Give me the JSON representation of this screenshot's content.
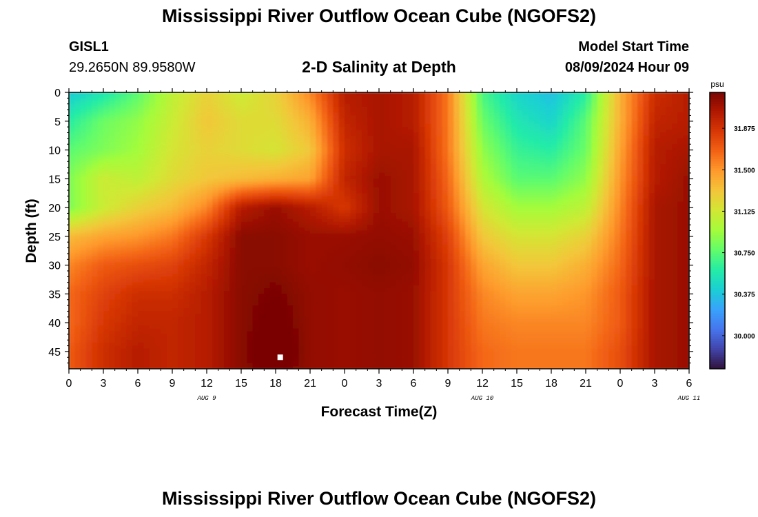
{
  "header": {
    "title": "Mississippi River Outflow Ocean Cube (NGOFS2)",
    "station": "GISL1",
    "coords": "29.2650N  89.9580W",
    "subtitle": "2-D Salinity at Depth",
    "model_start_label": "Model Start Time",
    "model_start_value": "08/09/2024 Hour 09",
    "footer_title": "Mississippi River Outflow Ocean Cube (NGOFS2)"
  },
  "colors": {
    "palette": [
      "#30123b",
      "#4145ab",
      "#4675ed",
      "#39a2fc",
      "#1bcfd4",
      "#24eca6",
      "#61fc6c",
      "#a4fc3b",
      "#d1e834",
      "#f3c63a",
      "#fe9b2d",
      "#f36315",
      "#d93806",
      "#b11901",
      "#7a0403"
    ]
  },
  "chart_data": {
    "type": "heatmap",
    "title": "2-D Salinity at Depth",
    "xlabel": "Forecast Time(Z)",
    "ylabel": "Depth (ft)",
    "x_tick_labels": [
      "0",
      "3",
      "6",
      "9",
      "12",
      "15",
      "18",
      "21",
      "0",
      "3",
      "6",
      "9",
      "12",
      "15",
      "18",
      "21",
      "0",
      "3",
      "6"
    ],
    "x_day_labels": [
      {
        "label": "AUG 9",
        "hour": 12
      },
      {
        "label": "AUG 10",
        "hour": 36
      },
      {
        "label": "AUG 11",
        "hour": 54
      }
    ],
    "x_hours_range": [
      0,
      54
    ],
    "y_ticks": [
      0,
      5,
      10,
      15,
      20,
      25,
      30,
      35,
      40,
      45
    ],
    "y_range": [
      0,
      48
    ],
    "colorbar": {
      "unit": "psu",
      "ticks": [
        "31.875",
        "31.500",
        "31.125",
        "30.750",
        "30.375",
        "30.000"
      ],
      "range": [
        29.7,
        32.2
      ]
    },
    "marker": {
      "hour": 18.4,
      "depth": 46
    },
    "hours": [
      0,
      3,
      6,
      9,
      12,
      15,
      18,
      21,
      24,
      27,
      30,
      33,
      36,
      39,
      42,
      45,
      48,
      51,
      54
    ],
    "depths": [
      0,
      5,
      10,
      15,
      20,
      25,
      30,
      35,
      40,
      45,
      48
    ],
    "values": [
      [
        30.4,
        30.55,
        30.75,
        31.05,
        31.25,
        31.1,
        31.25,
        31.55,
        32.0,
        32.05,
        32.0,
        31.6,
        30.7,
        30.45,
        30.35,
        30.6,
        31.4,
        31.9,
        32.0
      ],
      [
        30.6,
        30.8,
        30.9,
        31.1,
        31.3,
        31.2,
        31.2,
        31.4,
        31.95,
        32.05,
        32.0,
        31.6,
        30.8,
        30.55,
        30.45,
        30.75,
        31.4,
        31.95,
        32.0
      ],
      [
        30.75,
        30.85,
        30.95,
        31.15,
        31.25,
        31.2,
        31.15,
        31.3,
        31.9,
        32.05,
        32.05,
        31.6,
        30.9,
        30.65,
        30.6,
        30.8,
        31.45,
        32.0,
        32.05
      ],
      [
        30.85,
        31.1,
        31.05,
        31.2,
        31.3,
        31.35,
        31.4,
        31.45,
        31.95,
        32.1,
        32.05,
        31.65,
        31.0,
        30.75,
        30.75,
        30.9,
        31.5,
        32.0,
        32.1
      ],
      [
        30.85,
        31.1,
        31.25,
        31.35,
        31.55,
        32.0,
        32.1,
        32.0,
        31.85,
        32.1,
        32.05,
        31.7,
        31.15,
        30.95,
        30.95,
        31.05,
        31.55,
        32.05,
        32.1
      ],
      [
        31.35,
        31.45,
        31.5,
        31.6,
        31.85,
        32.15,
        32.15,
        32.1,
        32.1,
        32.12,
        32.1,
        31.8,
        31.3,
        31.15,
        31.15,
        31.25,
        31.6,
        32.05,
        32.1
      ],
      [
        31.55,
        31.7,
        31.75,
        31.8,
        31.95,
        32.15,
        32.15,
        32.1,
        32.12,
        32.15,
        32.12,
        31.85,
        31.45,
        31.3,
        31.3,
        31.4,
        31.65,
        32.05,
        32.1
      ],
      [
        31.65,
        31.8,
        31.9,
        31.9,
        32.0,
        32.15,
        32.2,
        32.12,
        32.1,
        32.12,
        32.1,
        31.85,
        31.55,
        31.45,
        31.45,
        31.5,
        31.7,
        32.05,
        32.1
      ],
      [
        31.65,
        31.85,
        31.95,
        31.95,
        32.0,
        32.15,
        32.25,
        32.12,
        32.1,
        32.12,
        32.1,
        31.85,
        31.6,
        31.55,
        31.55,
        31.55,
        31.7,
        32.05,
        32.1
      ],
      [
        31.7,
        31.9,
        32.0,
        31.95,
        32.0,
        32.15,
        32.3,
        32.12,
        32.1,
        32.12,
        32.1,
        31.85,
        31.65,
        31.6,
        31.6,
        31.6,
        31.75,
        32.05,
        32.1
      ],
      [
        31.7,
        31.9,
        32.0,
        31.95,
        32.0,
        32.15,
        32.25,
        32.12,
        32.1,
        32.12,
        32.1,
        31.85,
        31.65,
        31.6,
        31.6,
        31.6,
        31.75,
        32.05,
        32.1
      ]
    ]
  }
}
